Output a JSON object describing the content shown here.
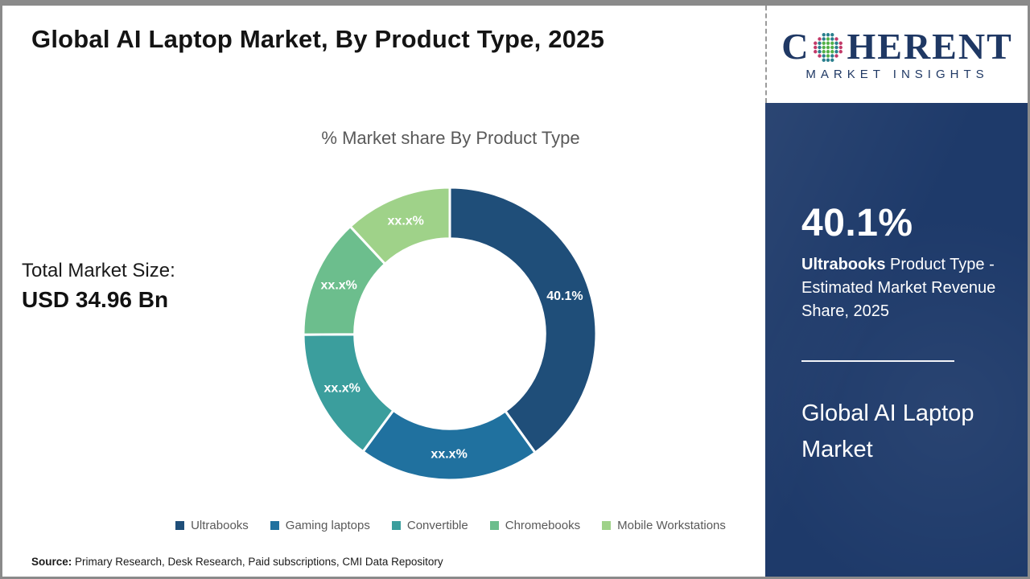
{
  "header": {
    "title": "Global AI Laptop Market, By Product Type, 2025"
  },
  "logo": {
    "text_start": "C",
    "text_end": "HERENT",
    "subtitle": "MARKET INSIGHTS",
    "brand_color": "#1f3864"
  },
  "main": {
    "chart_title": "% Market share By Product Type",
    "total_market_label": "Total Market Size:",
    "total_market_value": "USD 34.96 Bn",
    "source_label": "Source:",
    "source_text": " Primary Research, Desk Research, Paid subscriptions, CMI Data Repository"
  },
  "sidebar": {
    "bg_color": "#1e3a6a",
    "stat_value": "40.1%",
    "stat_bold": "Ultrabooks",
    "stat_rest": " Product Type - Estimated Market Revenue Share, 2025",
    "footer_title": "Global AI Laptop Market"
  },
  "chart_data": {
    "type": "pie",
    "subtype": "donut",
    "title": "% Market share By Product Type",
    "start_angle_deg": 0,
    "direction": "clockwise",
    "inner_radius_ratio": 0.65,
    "legend_position": "bottom",
    "series": [
      {
        "name": "Ultrabooks",
        "value": 40.1,
        "label": "40.1%",
        "color": "#1f4e79"
      },
      {
        "name": "Gaming laptops",
        "value": 20.0,
        "label": "xx.x%",
        "color": "#20719f"
      },
      {
        "name": "Convertible",
        "value": 14.8,
        "label": "xx.x%",
        "color": "#3b9e9d"
      },
      {
        "name": "Chromebooks",
        "value": 13.2,
        "label": "xx.x%",
        "color": "#6cbe8d"
      },
      {
        "name": "Mobile Workstations",
        "value": 11.9,
        "label": "xx.x%",
        "color": "#9fd289"
      }
    ]
  }
}
